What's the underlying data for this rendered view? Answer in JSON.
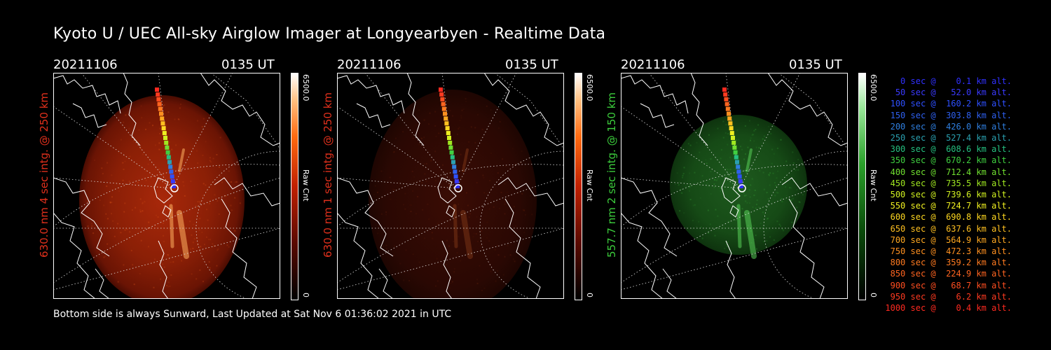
{
  "title": "Kyoto U / UEC All-sky Airglow Imager at Longyearbyen - Realtime Data",
  "footer": "Bottom side is always Sunward, Last Updated at Sat Nov  6 01:36:02 2021 in UTC",
  "panels": [
    {
      "date": "20211106",
      "time": "0135 UT",
      "ylabel": "630.0 nm 4 sec intg. @ 250 km",
      "label_color": "#e0301c",
      "cbar_max": "6500.0",
      "cbar_min": "0",
      "cbar_unit": "Raw Cnt"
    },
    {
      "date": "20211106",
      "time": "0135 UT",
      "ylabel": "630.0 nm 1 sec intg. @ 250 km",
      "label_color": "#e0301c",
      "cbar_max": "6500.0",
      "cbar_min": "0",
      "cbar_unit": "Raw Cnt"
    },
    {
      "date": "20211106",
      "time": "0135 UT",
      "ylabel": "557.7 nm 2 sec intg. @ 150 km",
      "label_color": "#3ccd3c",
      "cbar_max": "6500.0",
      "cbar_min": "0",
      "cbar_unit": "Raw Cnt"
    }
  ],
  "altitude_legend": [
    {
      "text": "   0 sec @    0.1 km alt.",
      "color": "#3030ff"
    },
    {
      "text": "  50 sec @   52.0 km alt.",
      "color": "#3a3aff"
    },
    {
      "text": " 100 sec @  160.2 km alt.",
      "color": "#2e50ff"
    },
    {
      "text": " 150 sec @  303.8 km alt.",
      "color": "#2e60f0"
    },
    {
      "text": " 200 sec @  426.0 km alt.",
      "color": "#2f7fe0"
    },
    {
      "text": " 250 sec @  527.4 km alt.",
      "color": "#2aa0b0"
    },
    {
      "text": " 300 sec @  608.6 km alt.",
      "color": "#25c080"
    },
    {
      "text": " 350 sec @  670.2 km alt.",
      "color": "#3fd040"
    },
    {
      "text": " 400 sec @  712.4 km alt.",
      "color": "#70e030"
    },
    {
      "text": " 450 sec @  735.5 km alt.",
      "color": "#a0e820"
    },
    {
      "text": " 500 sec @  739.6 km alt.",
      "color": "#d0f020"
    },
    {
      "text": " 550 sec @  724.7 km alt.",
      "color": "#f0f020"
    },
    {
      "text": " 600 sec @  690.8 km alt.",
      "color": "#ffd820"
    },
    {
      "text": " 650 sec @  637.6 km alt.",
      "color": "#ffc020"
    },
    {
      "text": " 700 sec @  564.9 km alt.",
      "color": "#ffa820"
    },
    {
      "text": " 750 sec @  472.3 km alt.",
      "color": "#ff9020"
    },
    {
      "text": " 800 sec @  359.2 km alt.",
      "color": "#ff7a20"
    },
    {
      "text": " 850 sec @  224.9 km alt.",
      "color": "#ff6420"
    },
    {
      "text": " 900 sec @   68.7 km alt.",
      "color": "#ff4e20"
    },
    {
      "text": " 950 sec @    6.2 km alt.",
      "color": "#ff3a20"
    },
    {
      "text": "1000 sec @    0.4 km alt.",
      "color": "#ff2a20"
    }
  ],
  "chart_data": {
    "type": "heatmap",
    "title": "Kyoto U / UEC All-sky Airglow Imager at Longyearbyen - Realtime Data",
    "colorbar_range": [
      0,
      6500
    ],
    "colorbar_unit": "Raw Cnt",
    "images": [
      {
        "wavelength_nm": 630.0,
        "integration_sec": 4,
        "altitude_km": 250,
        "colormap": "black-red-orange-white"
      },
      {
        "wavelength_nm": 630.0,
        "integration_sec": 1,
        "altitude_km": 250,
        "colormap": "black-red-orange-white"
      },
      {
        "wavelength_nm": 557.7,
        "integration_sec": 2,
        "altitude_km": 150,
        "colormap": "black-green-white"
      }
    ],
    "trajectory": {
      "time_sec": [
        0,
        50,
        100,
        150,
        200,
        250,
        300,
        350,
        400,
        450,
        500,
        550,
        600,
        650,
        700,
        750,
        800,
        850,
        900,
        950,
        1000
      ],
      "altitude_km": [
        0.1,
        52.0,
        160.2,
        303.8,
        426.0,
        527.4,
        608.6,
        670.2,
        712.4,
        735.5,
        739.6,
        724.7,
        690.8,
        637.6,
        564.9,
        472.3,
        359.2,
        224.9,
        68.7,
        6.2,
        0.4
      ]
    }
  }
}
